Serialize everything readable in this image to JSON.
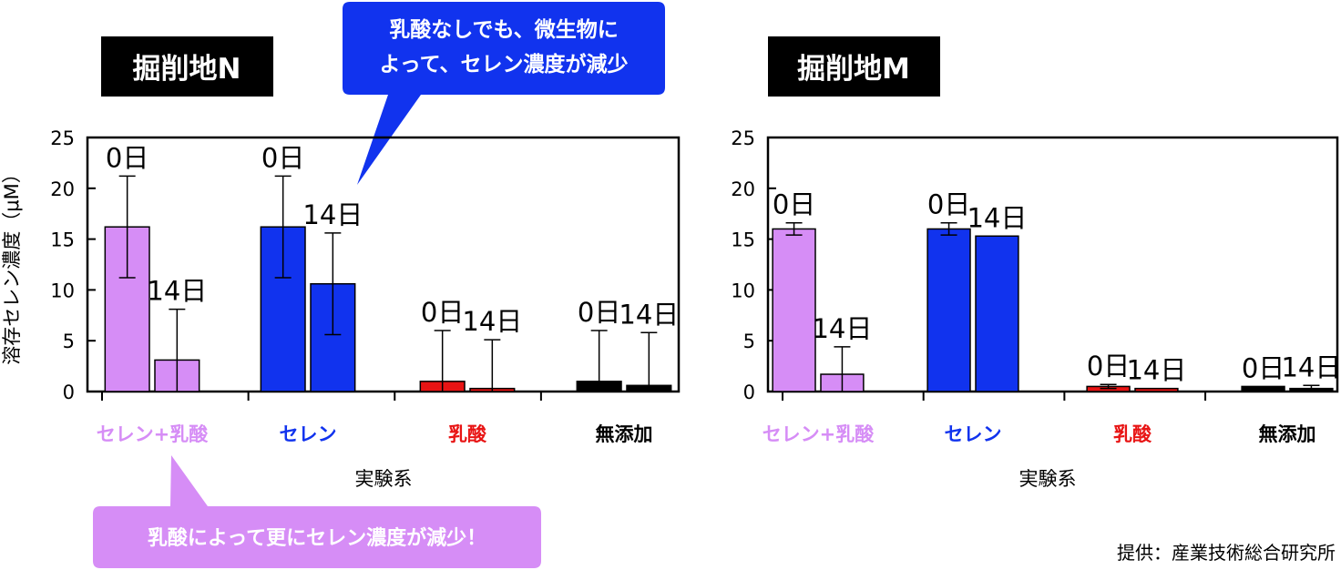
{
  "chart_data": [
    {
      "type": "bar",
      "title": "掘削地N",
      "ylabel": "溶存セレン濃度（μM）",
      "xlabel": "実験系",
      "ylim": [
        0,
        25
      ],
      "yticks": [
        "0",
        "5",
        "10",
        "15",
        "20",
        "25"
      ],
      "categories": [
        "セレン+乳酸",
        "セレン",
        "乳酸",
        "無添加"
      ],
      "category_colors": [
        "#d68df6",
        "#1133ee",
        "#e81414",
        "#000000"
      ],
      "bar_labels": [
        "0日",
        "14日"
      ],
      "series": [
        {
          "name": "0日",
          "values": [
            16.2,
            16.2,
            1.0,
            1.0
          ],
          "err": [
            5.0,
            5.0,
            5.0,
            5.0
          ]
        },
        {
          "name": "14日",
          "values": [
            3.1,
            10.6,
            0.3,
            0.6
          ],
          "err": [
            5.0,
            5.0,
            4.8,
            5.2
          ]
        }
      ]
    },
    {
      "type": "bar",
      "title": "掘削地M",
      "xlabel": "実験系",
      "ylim": [
        0,
        25
      ],
      "yticks": [
        "0",
        "5",
        "10",
        "15",
        "20",
        "25"
      ],
      "categories": [
        "セレン+乳酸",
        "セレン",
        "乳酸",
        "無添加"
      ],
      "category_colors": [
        "#d68df6",
        "#1133ee",
        "#e81414",
        "#000000"
      ],
      "bar_labels": [
        "0日",
        "14日"
      ],
      "series": [
        {
          "name": "0日",
          "values": [
            16.0,
            16.0,
            0.5,
            0.5
          ],
          "err": [
            0.6,
            0.6,
            0.2,
            0.0
          ]
        },
        {
          "name": "14日",
          "values": [
            1.7,
            15.3,
            0.3,
            0.3
          ],
          "err": [
            2.7,
            0.0,
            0.0,
            0.3
          ]
        }
      ]
    }
  ],
  "callouts": {
    "blue": [
      "乳酸なしでも、微生物に",
      "よって、セレン濃度が減少"
    ],
    "purple": "乳酸によって更にセレン濃度が減少！"
  },
  "credit": "提供：産業技術総合研究所",
  "colors": {
    "callout_blue": "#1133ee",
    "callout_purple": "#d68df6",
    "title_bg": "#000000"
  }
}
